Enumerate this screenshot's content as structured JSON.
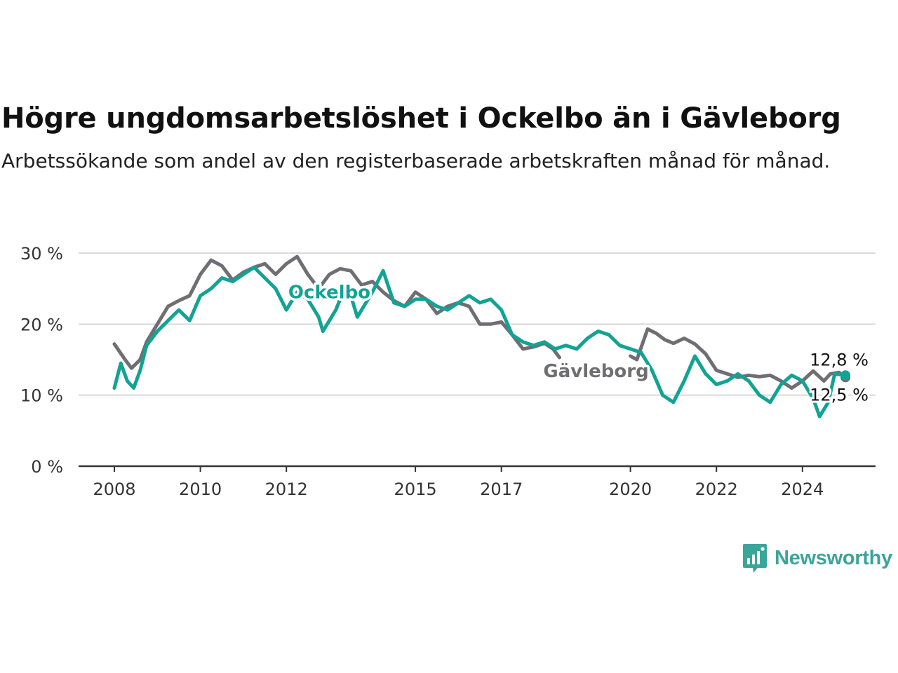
{
  "title": "Högre ungdomsarbetslöshet i Ockelbo än i Gävleborg",
  "subtitle": "Arbetssökande som andel av den registerbaserade arbetskraften månad för månad.",
  "brand": {
    "name": "Newsworthy",
    "color": "#3aa59a",
    "icon": "newsworthy-chart-bubble-icon"
  },
  "chart_data": {
    "type": "line",
    "y_tick_labels": [
      "0 %",
      "10 %",
      "20 %",
      "30 %"
    ],
    "y_ticks": [
      0,
      10,
      20,
      30
    ],
    "ylim": [
      0,
      30
    ],
    "x_range": [
      2008.0,
      2025.0
    ],
    "x_tick_labels": [
      "2008",
      "2010",
      "2012",
      "2015",
      "2017",
      "2020",
      "2022",
      "2024"
    ],
    "x_ticks": [
      2008,
      2010,
      2012,
      2015,
      2017,
      2020,
      2022,
      2024
    ],
    "grid": true,
    "series": [
      {
        "name": "Gävleborg",
        "color": "#6e6e73",
        "end_label": "12,5 %",
        "points": [
          [
            2008.0,
            17.2
          ],
          [
            2008.25,
            15.0
          ],
          [
            2008.4,
            13.8
          ],
          [
            2008.6,
            15.0
          ],
          [
            2008.75,
            17.5
          ],
          [
            2009.0,
            20.0
          ],
          [
            2009.25,
            22.5
          ],
          [
            2009.5,
            23.3
          ],
          [
            2009.75,
            24.0
          ],
          [
            2010.0,
            27.0
          ],
          [
            2010.25,
            29.0
          ],
          [
            2010.5,
            28.2
          ],
          [
            2010.75,
            26.2
          ],
          [
            2011.0,
            27.3
          ],
          [
            2011.25,
            28.0
          ],
          [
            2011.5,
            28.5
          ],
          [
            2011.75,
            27.0
          ],
          [
            2012.0,
            28.5
          ],
          [
            2012.25,
            29.5
          ],
          [
            2012.5,
            27.0
          ],
          [
            2012.75,
            25.0
          ],
          [
            2013.0,
            27.0
          ],
          [
            2013.25,
            27.8
          ],
          [
            2013.5,
            27.5
          ],
          [
            2013.75,
            25.5
          ],
          [
            2014.0,
            26.0
          ],
          [
            2014.25,
            24.5
          ],
          [
            2014.5,
            23.3
          ],
          [
            2014.75,
            22.5
          ],
          [
            2015.0,
            24.5
          ],
          [
            2015.25,
            23.5
          ],
          [
            2015.5,
            21.5
          ],
          [
            2015.75,
            22.5
          ],
          [
            2016.0,
            23.0
          ],
          [
            2016.25,
            22.5
          ],
          [
            2016.5,
            20.0
          ],
          [
            2016.75,
            20.0
          ],
          [
            2017.0,
            20.3
          ],
          [
            2017.25,
            18.5
          ],
          [
            2017.5,
            16.5
          ],
          [
            2017.75,
            16.8
          ],
          [
            2018.0,
            17.3
          ],
          [
            2018.2,
            16.5
          ],
          [
            2018.35,
            15.3
          ]
        ],
        "points_segment2": [
          [
            2020.0,
            15.5
          ],
          [
            2020.15,
            15.0
          ],
          [
            2020.4,
            19.3
          ],
          [
            2020.6,
            18.7
          ],
          [
            2020.8,
            17.8
          ],
          [
            2021.0,
            17.3
          ],
          [
            2021.25,
            18.0
          ],
          [
            2021.5,
            17.2
          ],
          [
            2021.75,
            15.8
          ],
          [
            2022.0,
            13.5
          ],
          [
            2022.25,
            13.0
          ],
          [
            2022.5,
            12.5
          ],
          [
            2022.75,
            12.8
          ],
          [
            2023.0,
            12.6
          ],
          [
            2023.25,
            12.8
          ],
          [
            2023.5,
            12.0
          ],
          [
            2023.75,
            11.0
          ],
          [
            2024.0,
            12.0
          ],
          [
            2024.25,
            13.4
          ],
          [
            2024.5,
            12.0
          ],
          [
            2024.65,
            13.0
          ],
          [
            2024.85,
            13.2
          ],
          [
            2025.0,
            12.5
          ]
        ]
      },
      {
        "name": "Ockelbo",
        "color": "#12a394",
        "end_label": "12,8 %",
        "points": [
          [
            2008.0,
            11.0
          ],
          [
            2008.15,
            14.5
          ],
          [
            2008.3,
            12.0
          ],
          [
            2008.45,
            11.0
          ],
          [
            2008.6,
            13.5
          ],
          [
            2008.75,
            17.0
          ],
          [
            2009.0,
            19.0
          ],
          [
            2009.25,
            20.5
          ],
          [
            2009.5,
            22.0
          ],
          [
            2009.75,
            20.5
          ],
          [
            2010.0,
            24.0
          ],
          [
            2010.25,
            25.0
          ],
          [
            2010.5,
            26.5
          ],
          [
            2010.75,
            26.0
          ],
          [
            2011.0,
            27.0
          ],
          [
            2011.25,
            28.0
          ],
          [
            2011.5,
            26.5
          ],
          [
            2011.75,
            25.0
          ],
          [
            2012.0,
            22.0
          ],
          [
            2012.25,
            24.5
          ],
          [
            2012.5,
            23.5
          ],
          [
            2012.75,
            21.0
          ],
          [
            2012.85,
            19.0
          ],
          [
            2013.0,
            20.5
          ],
          [
            2013.15,
            22.0
          ],
          [
            2013.35,
            25.0
          ],
          [
            2013.5,
            24.0
          ],
          [
            2013.65,
            21.0
          ],
          [
            2013.8,
            22.5
          ],
          [
            2014.0,
            24.5
          ],
          [
            2014.25,
            27.5
          ],
          [
            2014.5,
            23.0
          ],
          [
            2014.75,
            22.5
          ],
          [
            2015.0,
            23.5
          ],
          [
            2015.25,
            23.5
          ],
          [
            2015.5,
            22.5
          ],
          [
            2015.75,
            22.0
          ],
          [
            2016.0,
            23.0
          ],
          [
            2016.25,
            24.0
          ],
          [
            2016.5,
            23.0
          ],
          [
            2016.75,
            23.5
          ],
          [
            2017.0,
            22.0
          ],
          [
            2017.25,
            18.5
          ],
          [
            2017.5,
            17.5
          ],
          [
            2017.75,
            17.0
          ],
          [
            2018.0,
            17.5
          ],
          [
            2018.25,
            16.5
          ],
          [
            2018.5,
            17.0
          ],
          [
            2018.75,
            16.5
          ],
          [
            2019.0,
            18.0
          ],
          [
            2019.25,
            19.0
          ],
          [
            2019.5,
            18.5
          ],
          [
            2019.75,
            17.0
          ],
          [
            2020.0,
            16.5
          ],
          [
            2020.25,
            16.0
          ],
          [
            2020.5,
            13.5
          ],
          [
            2020.75,
            10.0
          ],
          [
            2021.0,
            9.0
          ],
          [
            2021.25,
            12.0
          ],
          [
            2021.5,
            15.5
          ],
          [
            2021.75,
            13.0
          ],
          [
            2022.0,
            11.5
          ],
          [
            2022.25,
            12.0
          ],
          [
            2022.5,
            13.0
          ],
          [
            2022.75,
            12.0
          ],
          [
            2023.0,
            10.0
          ],
          [
            2023.25,
            9.0
          ],
          [
            2023.5,
            11.5
          ],
          [
            2023.75,
            12.8
          ],
          [
            2024.0,
            12.0
          ],
          [
            2024.25,
            9.5
          ],
          [
            2024.4,
            7.0
          ],
          [
            2024.6,
            9.0
          ],
          [
            2024.75,
            13.0
          ],
          [
            2025.0,
            12.8
          ]
        ]
      }
    ],
    "annotations": [
      {
        "text": "Ockelbo",
        "x": 2013.0,
        "y": 24.5,
        "color": "#12a394"
      },
      {
        "text": "Gävleborg",
        "x": 2019.2,
        "y": 13.4,
        "color": "#6e6e73"
      }
    ]
  }
}
